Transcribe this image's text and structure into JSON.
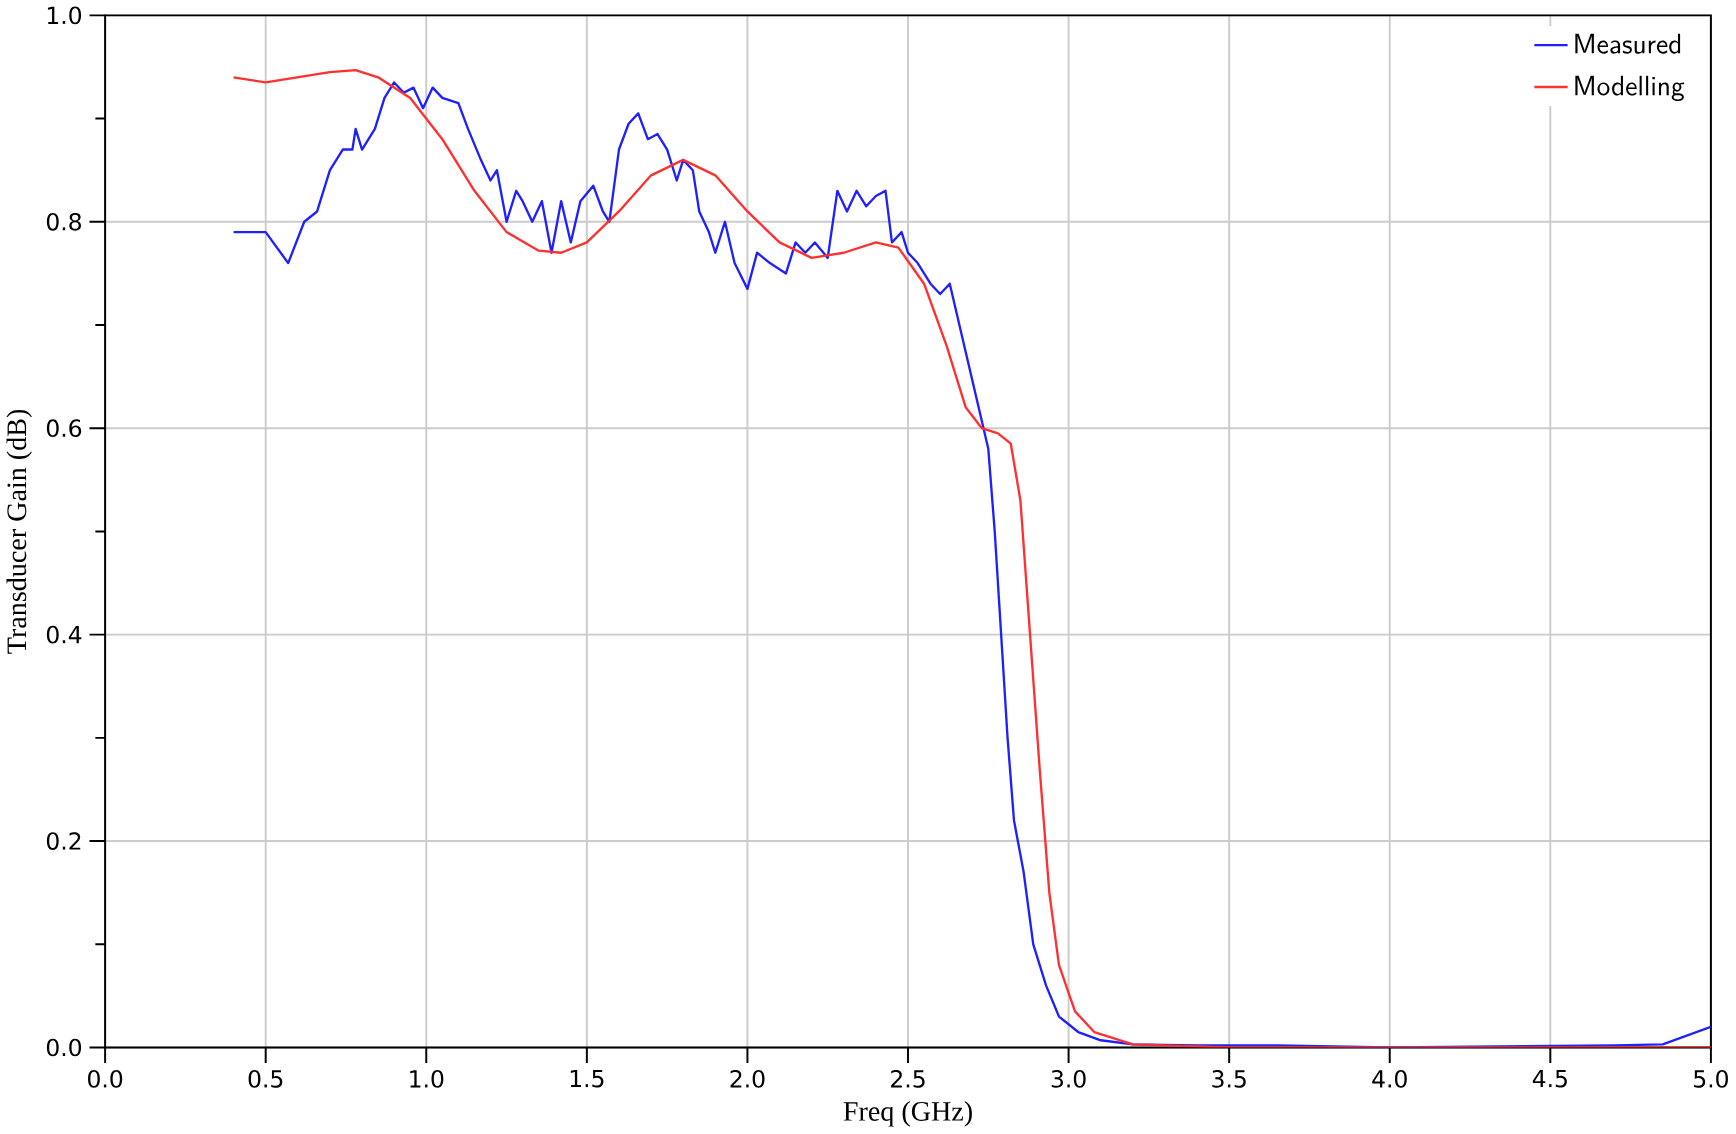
{
  "chart_data": {
    "type": "line",
    "xlabel": "Freq (GHz)",
    "ylabel": "Transducer Gain  (dB)",
    "xlim": [
      0,
      5
    ],
    "ylim": [
      0,
      1
    ],
    "xticks": [
      {
        "value": 0,
        "label": "0.0"
      },
      {
        "value": 0.5,
        "label": "0.5"
      },
      {
        "value": 1,
        "label": "1.0"
      },
      {
        "value": 1.5,
        "label": "1.5"
      },
      {
        "value": 2,
        "label": "2.0"
      },
      {
        "value": 2.5,
        "label": "2.5"
      },
      {
        "value": 3,
        "label": "3.0"
      },
      {
        "value": 3.5,
        "label": "3.5"
      },
      {
        "value": 4,
        "label": "4.0"
      },
      {
        "value": 4.5,
        "label": "4.5"
      },
      {
        "value": 5,
        "label": "5.0"
      }
    ],
    "yticks": [
      {
        "value": 0,
        "label": "0.0"
      },
      {
        "value": 0.2,
        "label": "0.2"
      },
      {
        "value": 0.4,
        "label": "0.4"
      },
      {
        "value": 0.6,
        "label": "0.6"
      },
      {
        "value": 0.8,
        "label": "0.8"
      },
      {
        "value": 1,
        "label": "1.0"
      }
    ],
    "grid": true,
    "legend": "top right",
    "marker": "none",
    "line_style": "solid",
    "series": [
      {
        "name": "Measured",
        "color": "#2020ff",
        "x": [
          0.4,
          0.5,
          0.57,
          0.62,
          0.66,
          0.7,
          0.74,
          0.77,
          0.78,
          0.8,
          0.84,
          0.87,
          0.9,
          0.93,
          0.96,
          0.99,
          1.02,
          1.05,
          1.1,
          1.13,
          1.17,
          1.2,
          1.22,
          1.25,
          1.28,
          1.3,
          1.33,
          1.36,
          1.39,
          1.42,
          1.45,
          1.48,
          1.52,
          1.55,
          1.57,
          1.6,
          1.63,
          1.66,
          1.69,
          1.72,
          1.75,
          1.78,
          1.8,
          1.83,
          1.85,
          1.88,
          1.9,
          1.93,
          1.96,
          2.0,
          2.03,
          2.07,
          2.12,
          2.15,
          2.18,
          2.21,
          2.25,
          2.28,
          2.31,
          2.34,
          2.37,
          2.4,
          2.43,
          2.45,
          2.48,
          2.5,
          2.53,
          2.57,
          2.6,
          2.63,
          2.66,
          2.69,
          2.72,
          2.75,
          2.77,
          2.79,
          2.81,
          2.83,
          2.86,
          2.89,
          2.93,
          2.97,
          3.03,
          3.1,
          3.2,
          3.4,
          3.65,
          4.0,
          4.7,
          4.85,
          5.0
        ],
        "values": [
          0.79,
          0.79,
          0.76,
          0.8,
          0.81,
          0.85,
          0.87,
          0.87,
          0.89,
          0.87,
          0.89,
          0.92,
          0.935,
          0.925,
          0.93,
          0.91,
          0.93,
          0.92,
          0.915,
          0.89,
          0.86,
          0.84,
          0.85,
          0.8,
          0.83,
          0.82,
          0.8,
          0.82,
          0.77,
          0.82,
          0.78,
          0.82,
          0.835,
          0.81,
          0.8,
          0.87,
          0.895,
          0.905,
          0.88,
          0.885,
          0.87,
          0.84,
          0.86,
          0.85,
          0.81,
          0.79,
          0.77,
          0.8,
          0.76,
          0.735,
          0.77,
          0.76,
          0.75,
          0.78,
          0.77,
          0.78,
          0.765,
          0.83,
          0.81,
          0.83,
          0.815,
          0.825,
          0.83,
          0.78,
          0.79,
          0.77,
          0.76,
          0.74,
          0.73,
          0.74,
          0.7,
          0.66,
          0.62,
          0.58,
          0.5,
          0.4,
          0.3,
          0.22,
          0.17,
          0.1,
          0.06,
          0.03,
          0.015,
          0.007,
          0.003,
          0.002,
          0.002,
          0.0,
          0.002,
          0.003,
          0.02
        ]
      },
      {
        "name": "Modelling",
        "color": "#ff3030",
        "x": [
          0.4,
          0.5,
          0.6,
          0.7,
          0.78,
          0.85,
          0.95,
          1.05,
          1.15,
          1.25,
          1.35,
          1.42,
          1.5,
          1.6,
          1.7,
          1.8,
          1.9,
          2.0,
          2.1,
          2.2,
          2.3,
          2.4,
          2.47,
          2.55,
          2.62,
          2.68,
          2.73,
          2.78,
          2.82,
          2.85,
          2.88,
          2.91,
          2.94,
          2.97,
          3.02,
          3.08,
          3.2,
          3.5,
          5.0
        ],
        "values": [
          0.94,
          0.935,
          0.94,
          0.945,
          0.947,
          0.94,
          0.92,
          0.88,
          0.83,
          0.79,
          0.772,
          0.77,
          0.78,
          0.81,
          0.845,
          0.86,
          0.845,
          0.81,
          0.78,
          0.765,
          0.77,
          0.78,
          0.775,
          0.74,
          0.68,
          0.62,
          0.6,
          0.595,
          0.585,
          0.53,
          0.4,
          0.27,
          0.15,
          0.08,
          0.035,
          0.015,
          0.003,
          0.0,
          0.0
        ]
      }
    ]
  }
}
